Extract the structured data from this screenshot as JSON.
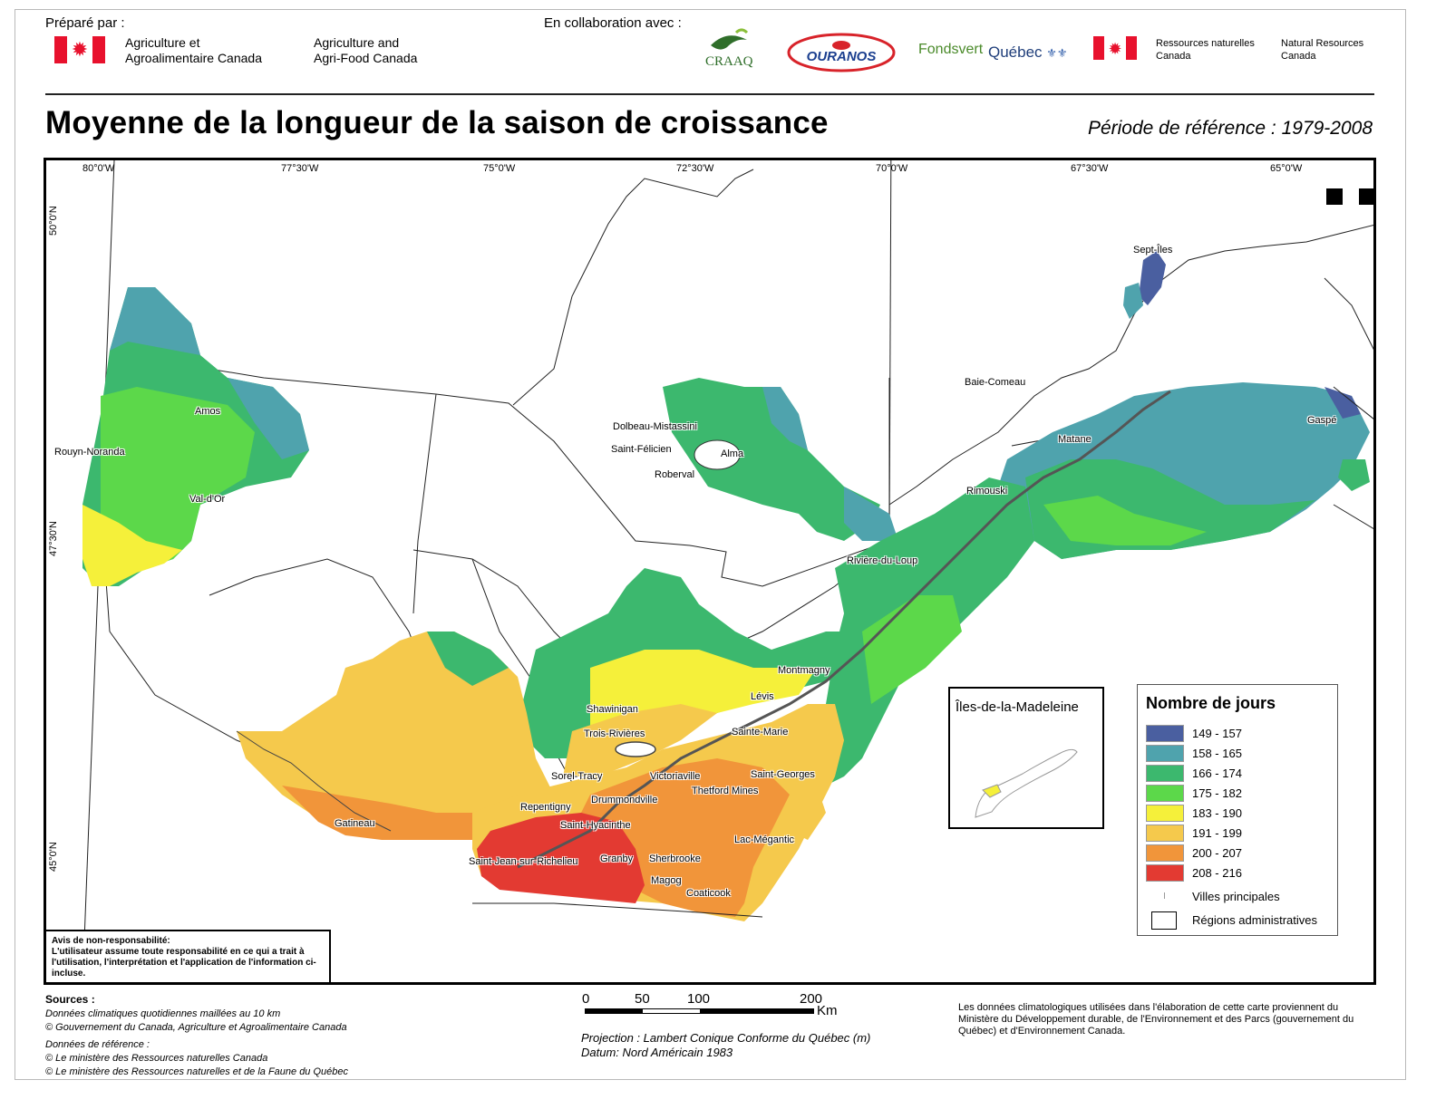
{
  "header": {
    "prepared_by": "Préparé par :",
    "aac_fr_line1": "Agriculture et",
    "aac_fr_line2": "Agroalimentaire  Canada",
    "aac_en_line1": "Agriculture and",
    "aac_en_line2": "Agri-Food  Canada",
    "collab": "En collaboration avec :",
    "logo_craaq": "CRAAQ",
    "logo_ouranos": "OURANOS",
    "logo_fondsvert": "Fondsvert",
    "logo_quebec": "Québec",
    "nrc_fr_line1": "Ressources naturelles",
    "nrc_fr_line2": "Canada",
    "nrc_en_line1": "Natural Resources",
    "nrc_en_line2": "Canada"
  },
  "title": "Moyenne de la longueur de la saison de croissance",
  "period": "Période de référence : 1979-2008",
  "map": {
    "lon_ticks": [
      "80°0'W",
      "77°30'W",
      "75°0'W",
      "72°30'W",
      "70°0'W",
      "67°30'W",
      "65°0'W"
    ],
    "lat_ticks": [
      "50°0'N",
      "47°30'N",
      "45°0'N"
    ],
    "cities": [
      "Sept-Îles",
      "Baie-Comeau",
      "Gaspé",
      "Matane",
      "Rimouski",
      "Rivière-du-Loup",
      "Montmagny",
      "Lévis",
      "Sainte-Marie",
      "Saint-Georges",
      "Thetford Mines",
      "Lac-Mégantic",
      "Victoriaville",
      "Drummondville",
      "Saint-Hyacinthe",
      "Sherbrooke",
      "Magog",
      "Coaticook",
      "Granby",
      "Saint-Jean-sur-Richelieu",
      "Repentigny",
      "Sorel-Tracy",
      "Trois-Rivières",
      "Shawinigan",
      "Gatineau",
      "Amos",
      "Rouyn-Noranda",
      "Val-d'Or",
      "Dolbeau-Mistassini",
      "Saint-Félicien",
      "Alma",
      "Roberval"
    ],
    "inset_title": "Îles-de-la-Madeleine",
    "disclaimer_title": "Avis de non-responsabilité:",
    "disclaimer_text": "L'utilisateur assume toute responsabilité en ce qui a trait à l'utilisation, l'interprétation et l'application de l'information ci-incluse."
  },
  "legend": {
    "title": "Nombre de jours",
    "classes": [
      {
        "label": "149 - 157",
        "color": "#4a5fa0"
      },
      {
        "label": "158 - 165",
        "color": "#4fa3ad"
      },
      {
        "label": "166 - 174",
        "color": "#3cb86e"
      },
      {
        "label": "175 - 182",
        "color": "#5cd84a"
      },
      {
        "label": "183 - 190",
        "color": "#f5f03a"
      },
      {
        "label": "191 - 199",
        "color": "#f5c94c"
      },
      {
        "label": "200 - 207",
        "color": "#f1953a"
      },
      {
        "label": "208 - 216",
        "color": "#e33a32"
      }
    ],
    "cities_label": "Villes principales",
    "regions_label": "Régions administratives"
  },
  "footer": {
    "sources_title": "Sources :",
    "source1": "Données climatiques quotidiennes maillées au 10 km",
    "source2": "© Gouvernement du Canada, Agriculture et Agroalimentaire Canada",
    "ref_title": "Données de référence :",
    "ref1": "© Le ministère des Ressources naturelles Canada",
    "ref2": "© Le ministère des Ressources naturelles et de la Faune du Québec",
    "scale_labels": [
      "0",
      "50",
      "100",
      "200"
    ],
    "scale_unit": "Km",
    "projection": "Projection : Lambert Conique Conforme du Québec (m)",
    "datum": "Datum: Nord Américain 1983",
    "note": "Les données climatologiques utilisées dans l'élaboration de cette carte proviennent du Ministère du Développement durable, de l'Environnement et des Parcs (gouvernement du Québec) et d'Environnement Canada."
  }
}
